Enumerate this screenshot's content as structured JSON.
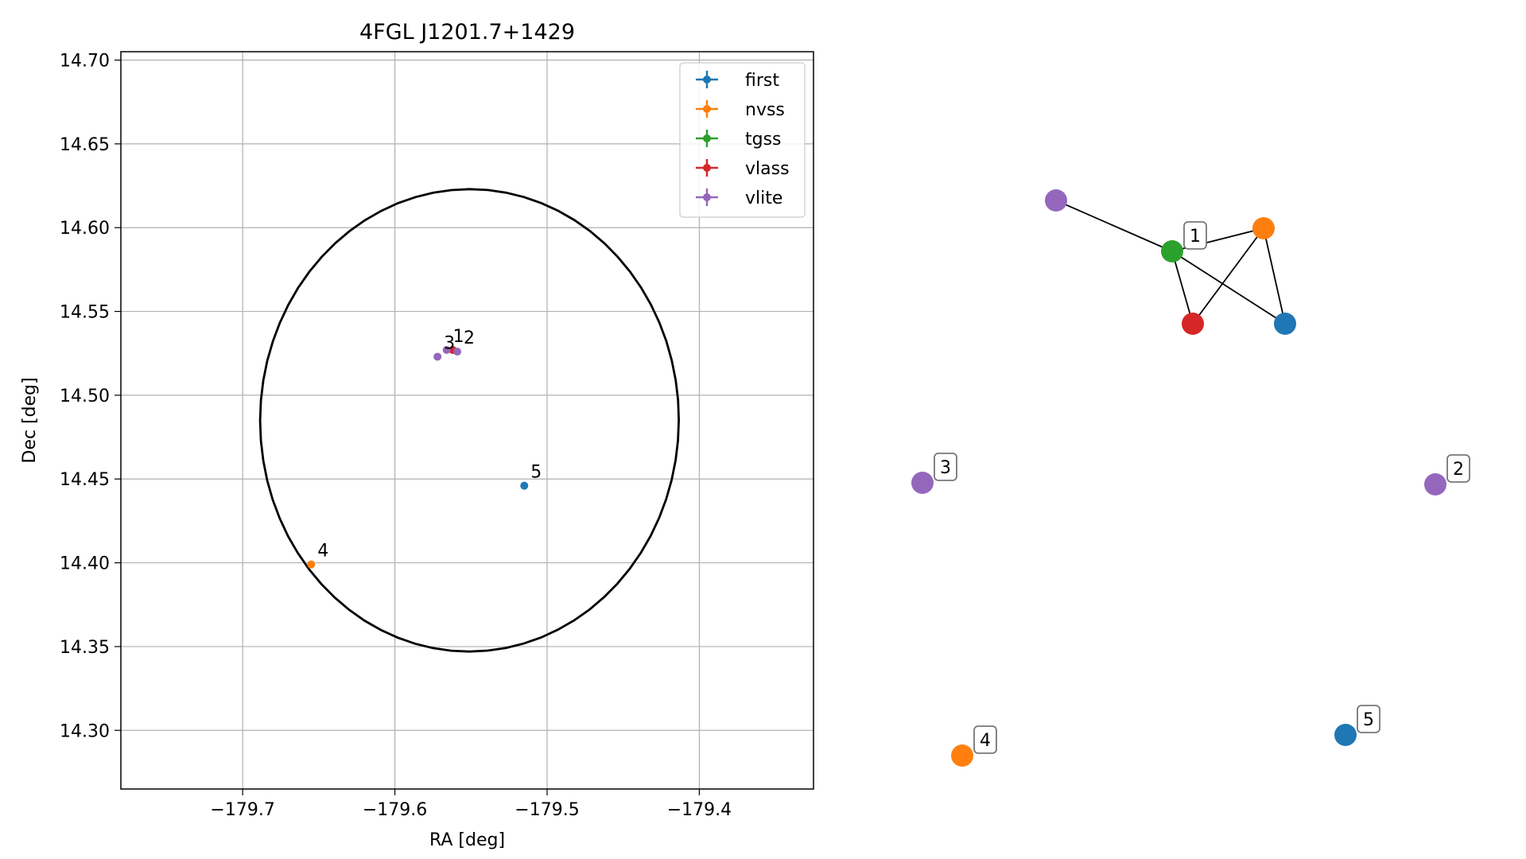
{
  "chart_data": [
    {
      "type": "scatter",
      "title": "4FGL J1201.7+1429",
      "xlabel": "RA [deg]",
      "ylabel": "Dec [deg]",
      "xlim": [
        -179.78,
        -179.325
      ],
      "ylim": [
        14.265,
        14.705
      ],
      "xticks": [
        -179.7,
        -179.6,
        -179.5,
        -179.4
      ],
      "xtick_labels": [
        "−179.7",
        "−179.6",
        "−179.5",
        "−179.4"
      ],
      "yticks": [
        14.3,
        14.35,
        14.4,
        14.45,
        14.5,
        14.55,
        14.6,
        14.65,
        14.7
      ],
      "ytick_labels": [
        "14.30",
        "14.35",
        "14.40",
        "14.45",
        "14.50",
        "14.55",
        "14.60",
        "14.65",
        "14.70"
      ],
      "grid": true,
      "legend_position": "top-right",
      "series": [
        {
          "name": "first",
          "color": "#1f77b4",
          "points": [
            {
              "x": -179.515,
              "y": 14.446,
              "label": "5"
            }
          ]
        },
        {
          "name": "nvss",
          "color": "#ff7f0e",
          "points": [
            {
              "x": -179.655,
              "y": 14.399,
              "label": "4"
            }
          ]
        },
        {
          "name": "tgss",
          "color": "#2ca02c",
          "points": [
            {
              "x": -179.562,
              "y": 14.527,
              "label": ""
            }
          ]
        },
        {
          "name": "vlass",
          "color": "#d62728",
          "points": [
            {
              "x": -179.562,
              "y": 14.527,
              "label": ""
            }
          ]
        },
        {
          "name": "vlite",
          "color": "#9467bd",
          "points": [
            {
              "x": -179.566,
              "y": 14.527,
              "label": "1"
            },
            {
              "x": -179.559,
              "y": 14.526,
              "label": "2"
            },
            {
              "x": -179.572,
              "y": 14.523,
              "label": "3"
            }
          ]
        }
      ],
      "ellipse": {
        "center_x": -179.551,
        "center_y": 14.485,
        "semi_x": 0.1375,
        "semi_y": 0.138,
        "angle_deg": -15,
        "color": "#000000"
      }
    },
    {
      "type": "network",
      "nodes": [
        {
          "id": "vlite-1",
          "color": "#9467bd"
        },
        {
          "id": "tgss-1",
          "color": "#2ca02c",
          "label": "1"
        },
        {
          "id": "nvss-1",
          "color": "#ff7f0e"
        },
        {
          "id": "vlass-1",
          "color": "#d62728"
        },
        {
          "id": "first-1",
          "color": "#1f77b4"
        },
        {
          "id": "vlite-3",
          "color": "#9467bd",
          "label": "3"
        },
        {
          "id": "vlite-2",
          "color": "#9467bd",
          "label": "2"
        },
        {
          "id": "nvss-4",
          "color": "#ff7f0e",
          "label": "4"
        },
        {
          "id": "first-5",
          "color": "#1f77b4",
          "label": "5"
        }
      ],
      "edges": [
        [
          "vlite-1",
          "tgss-1"
        ],
        [
          "tgss-1",
          "nvss-1"
        ],
        [
          "tgss-1",
          "vlass-1"
        ],
        [
          "tgss-1",
          "first-1"
        ],
        [
          "nvss-1",
          "vlass-1"
        ],
        [
          "nvss-1",
          "first-1"
        ]
      ]
    }
  ]
}
